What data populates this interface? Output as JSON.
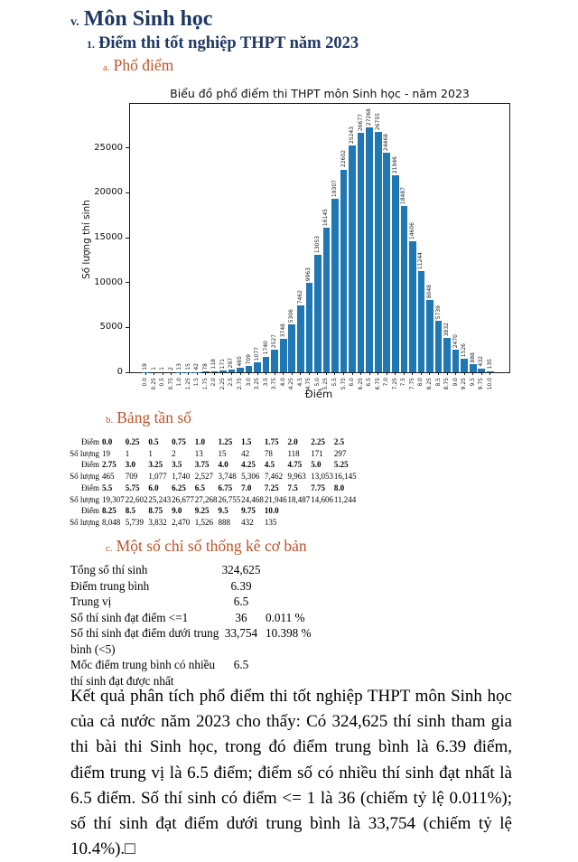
{
  "colors": {
    "navy": "#1F3864",
    "orange": "#C0532B",
    "bar_blue": "#1f77b4"
  },
  "headings": {
    "h1": {
      "prefix": "v.",
      "text": "Môn Sinh học"
    },
    "h2": {
      "prefix": "1.",
      "text": "Điểm thi tốt nghiệp THPT năm 2023"
    },
    "h3a": {
      "prefix": "a.",
      "text": "Phổ điểm"
    },
    "h3b": {
      "prefix": "b.",
      "text": "Bảng tần số"
    },
    "h3c": {
      "prefix": "c.",
      "text": "Một số chỉ số thống kê cơ bản"
    }
  },
  "chart_data": {
    "type": "bar",
    "title": "Biểu đồ phổ điểm thi THPT môn Sinh học - năm 2023",
    "xlabel": "Điểm",
    "ylabel": "Số lượng thí sinh",
    "categories": [
      "0.0",
      "0.25",
      "0.5",
      "0.75",
      "1.0",
      "1.25",
      "1.5",
      "1.75",
      "2.0",
      "2.25",
      "2.5",
      "2.75",
      "3.0",
      "3.25",
      "3.5",
      "3.75",
      "4.0",
      "4.25",
      "4.5",
      "4.75",
      "5.0",
      "5.25",
      "5.5",
      "5.75",
      "6.0",
      "6.25",
      "6.5",
      "6.75",
      "7.0",
      "7.25",
      "7.5",
      "7.75",
      "8.0",
      "8.25",
      "8.5",
      "8.75",
      "9.0",
      "9.25",
      "9.5",
      "9.75",
      "10.0"
    ],
    "values": [
      19,
      1,
      1,
      2,
      13,
      15,
      42,
      78,
      118,
      171,
      297,
      465,
      709,
      1077,
      1740,
      2527,
      3748,
      5306,
      7462,
      9963,
      13053,
      16145,
      19307,
      22602,
      25243,
      26677,
      27268,
      26755,
      24468,
      21946,
      18487,
      14606,
      11244,
      8048,
      5739,
      3832,
      2470,
      1526,
      888,
      432,
      135
    ],
    "bar_labels": [
      "19",
      "1",
      "1",
      "2",
      "13",
      "15",
      "42",
      "78",
      "118",
      "171",
      "297",
      "465",
      "709",
      "1077",
      "1740",
      "2527",
      "3748",
      "5306",
      "7462",
      "9963",
      "13053",
      "16145",
      "19307",
      "22602",
      "25243",
      "26677",
      "27268",
      "26755",
      "24468",
      "21946",
      "18487",
      "14606",
      "11244",
      "8048",
      "5739",
      "3832",
      "2470",
      "1526",
      "888",
      "432",
      "135"
    ],
    "yticks": [
      0,
      5000,
      10000,
      15000,
      20000,
      25000
    ],
    "ylim": [
      0,
      29900
    ],
    "grid": false,
    "legend": null
  },
  "freq_table": {
    "diem_label": "Điểm",
    "so_luong_label": "Số lượng",
    "rows": [
      {
        "diem": [
          "0.0",
          "0.25",
          "0.5",
          "0.75",
          "1.0",
          "1.25",
          "1.5",
          "1.75",
          "2.0",
          "2.25",
          "2.5"
        ],
        "so_luong": [
          "19",
          "1",
          "1",
          "2",
          "13",
          "15",
          "42",
          "78",
          "118",
          "171",
          "297"
        ]
      },
      {
        "diem": [
          "2.75",
          "3.0",
          "3.25",
          "3.5",
          "3.75",
          "4.0",
          "4.25",
          "4.5",
          "4.75",
          "5.0",
          "5.25"
        ],
        "so_luong": [
          "465",
          "709",
          "1,077",
          "1,740",
          "2,527",
          "3,748",
          "5,306",
          "7,462",
          "9,963",
          "13,053",
          "16,145"
        ]
      },
      {
        "diem": [
          "5.5",
          "5.75",
          "6.0",
          "6.25",
          "6.5",
          "6.75",
          "7.0",
          "7.25",
          "7.5",
          "7.75",
          "8.0"
        ],
        "so_luong": [
          "19,307",
          "22,602",
          "25,243",
          "26,677",
          "27,268",
          "26,755",
          "24,468",
          "21,946",
          "18,487",
          "14,606",
          "11,244"
        ]
      },
      {
        "diem": [
          "8.25",
          "8.5",
          "8.75",
          "9.0",
          "9.25",
          "9.5",
          "9.75",
          "10.0"
        ],
        "so_luong": [
          "8,048",
          "5,739",
          "3,832",
          "2,470",
          "1,526",
          "888",
          "432",
          "135"
        ]
      }
    ]
  },
  "stats": {
    "rows": [
      {
        "label": "Tổng số thí sinh",
        "value": "324,625",
        "pct": ""
      },
      {
        "label": "Điểm trung bình",
        "value": "6.39",
        "pct": ""
      },
      {
        "label": "Trung vị",
        "value": "6.5",
        "pct": ""
      },
      {
        "label": "Số thí sinh đạt điểm <=1",
        "value": "36",
        "pct": "0.011 %"
      },
      {
        "label": "Số thí sinh đạt điểm dưới trung bình (<5)",
        "value": "33,754",
        "pct": "10.398 %"
      },
      {
        "label": "Mốc điểm trung bình có nhiều thí sinh đạt được nhất",
        "value": "6.5",
        "pct": ""
      }
    ]
  },
  "paragraph": "Kết quả phân tích phổ điểm thi tốt nghiệp THPT môn Sinh học của cả nước năm 2023 cho thấy: Có 324,625 thí sinh tham gia thi bài thi Sinh học, trong đó điểm trung bình là 6.39 điểm, điểm trung vị là 6.5 điểm; điểm số có nhiều thí sinh đạt nhất là 6.5 điểm. Số thí sinh có điểm <= 1 là 36 (chiếm tỷ lệ 0.011%); số thí sinh đạt điểm dưới trung bình là 33,754 (chiếm tỷ lệ 10.4%).□"
}
